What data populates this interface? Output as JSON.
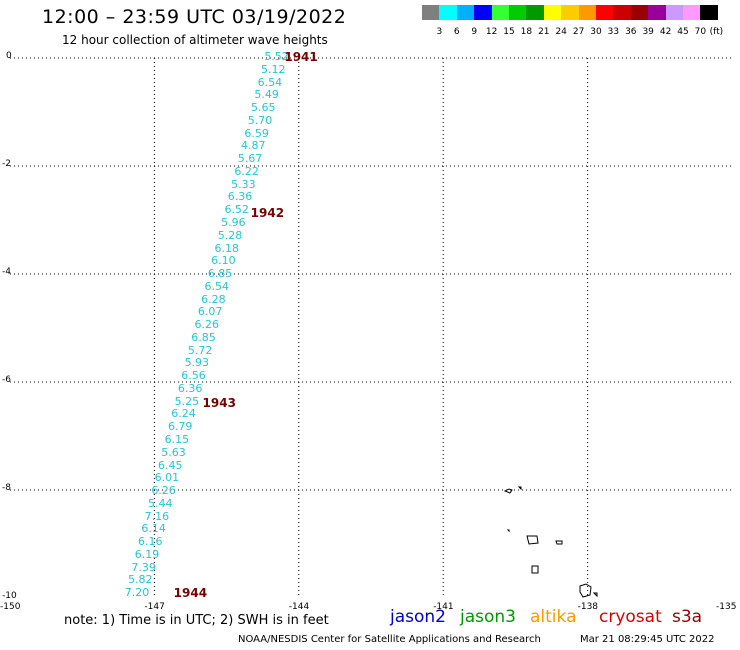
{
  "title": "12:00 – 23:59 UTC 03/19/2022",
  "subtitle": "12 hour collection of altimeter wave heights",
  "colorbar": {
    "unit": "(ft)",
    "labels": [
      "3",
      "6",
      "9",
      "12",
      "15",
      "18",
      "21",
      "24",
      "27",
      "30",
      "33",
      "36",
      "39",
      "42",
      "45",
      "70"
    ],
    "colors": [
      "#7f7f7f",
      "#00ffff",
      "#00b0ff",
      "#0000ff",
      "#33ff33",
      "#00cc00",
      "#009900",
      "#ffff00",
      "#ffcc00",
      "#ff9900",
      "#ff0000",
      "#cc0000",
      "#990000",
      "#990099",
      "#cc99ff",
      "#ff99ff",
      "#000000"
    ]
  },
  "axes": {
    "y_ticks": [
      "0",
      "-2",
      "-4",
      "-6",
      "-8",
      "-10"
    ],
    "x_ticks": [
      "-150",
      "-147",
      "-144",
      "-141",
      "-138",
      "-135"
    ]
  },
  "track": {
    "swh_ft": [
      "5.52",
      "5.12",
      "6.54",
      "5.49",
      "5.65",
      "5.70",
      "6.59",
      "4.87",
      "5.67",
      "6.22",
      "5.33",
      "6.36",
      "6.52",
      "5.96",
      "5.28",
      "6.18",
      "6.10",
      "6.85",
      "6.54",
      "6.28",
      "6.07",
      "6.26",
      "6.85",
      "5.72",
      "5.93",
      "6.56",
      "6.36",
      "5.25",
      "6.24",
      "6.79",
      "6.15",
      "5.63",
      "6.45",
      "6.01",
      "6.26",
      "5.44",
      "7.16",
      "6.14",
      "6.16",
      "6.19",
      "7.39",
      "5.82",
      "7.20"
    ],
    "hour_marks": [
      {
        "label": "1941",
        "lat": 0.0,
        "lon": -144.3
      },
      {
        "label": "1942",
        "lat": -2.88,
        "lon": -145.0
      },
      {
        "label": "1943",
        "lat": -6.41,
        "lon": -146.0
      },
      {
        "label": "1944",
        "lat": -9.93,
        "lon": -146.6
      }
    ],
    "color": "#22c7d8"
  },
  "note": "note:  1) Time is in UTC;  2) SWH is in feet",
  "missions": [
    {
      "name": "jason2",
      "color": "#0000cc"
    },
    {
      "name": "jason3",
      "color": "#009900"
    },
    {
      "name": "altika",
      "color": "#ff9900"
    },
    {
      "name": "cryosat",
      "color": "#dd0000"
    },
    {
      "name": "s3a",
      "color": "#990000"
    }
  ],
  "credit": "NOAA/NESDIS Center for Satellite Applications and Research",
  "timestamp": "Mar 21 08:29:45 UTC 2022"
}
